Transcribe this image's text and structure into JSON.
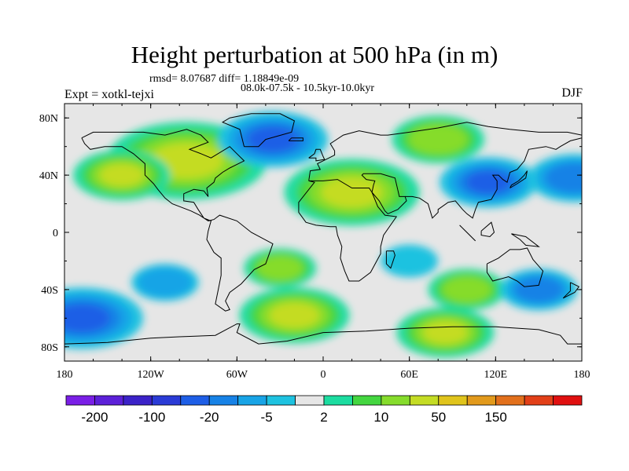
{
  "title": "Height perturbation at 500 hPa (in m)",
  "subtitle_stats": "rmsd= 8.07687 diff= 1.18849e-09",
  "subtitle_period": "08.0k-07.5k - 10.5kyr-10.0kyr",
  "left_label": "Expt = xotkl-tejxi",
  "right_label": "DJF",
  "chart_data": {
    "type": "heatmap",
    "projection": "cylindrical-equidistant",
    "lon_range": [
      -180,
      180
    ],
    "lat_range": [
      -90,
      90
    ],
    "x_ticks": [
      {
        "value": -180,
        "label": "180"
      },
      {
        "value": -120,
        "label": "120W"
      },
      {
        "value": -60,
        "label": "60W"
      },
      {
        "value": 0,
        "label": "0"
      },
      {
        "value": 60,
        "label": "60E"
      },
      {
        "value": 120,
        "label": "120E"
      },
      {
        "value": 180,
        "label": "180"
      }
    ],
    "y_ticks": [
      {
        "value": 80,
        "label": "80N"
      },
      {
        "value": 40,
        "label": "40N"
      },
      {
        "value": 0,
        "label": "0"
      },
      {
        "value": -40,
        "label": "40S"
      },
      {
        "value": -80,
        "label": "80S"
      }
    ],
    "colorbar": {
      "colors": [
        "#7a1fe6",
        "#5c20d8",
        "#3b22c8",
        "#2a3bd6",
        "#1e5ee6",
        "#1782e6",
        "#18a4e6",
        "#1ec2e0",
        "#e6e6e6",
        "#1cdca0",
        "#44d640",
        "#86dc2c",
        "#c4dc24",
        "#e0c41c",
        "#e29a1c",
        "#e2701c",
        "#e24018",
        "#e01010"
      ],
      "tick_labels": [
        "-200",
        "-100",
        "-20",
        "-5",
        "2",
        "10",
        "50",
        "150"
      ],
      "tick_boundaries": [
        1,
        3,
        5,
        7,
        9,
        11,
        13,
        15
      ]
    },
    "anomalies": [
      {
        "lon": -95,
        "lat": 50,
        "value": 45
      },
      {
        "lon": -140,
        "lat": 40,
        "value": 20
      },
      {
        "lon": -35,
        "lat": 65,
        "value": -25
      },
      {
        "lon": 20,
        "lat": 28,
        "value": 35
      },
      {
        "lon": 80,
        "lat": 65,
        "value": 18
      },
      {
        "lon": 115,
        "lat": 35,
        "value": -20
      },
      {
        "lon": 175,
        "lat": 38,
        "value": -18
      },
      {
        "lon": -168,
        "lat": -60,
        "value": -30
      },
      {
        "lon": -20,
        "lat": -58,
        "value": 25
      },
      {
        "lon": 85,
        "lat": -70,
        "value": 20
      },
      {
        "lon": 100,
        "lat": -40,
        "value": 12
      },
      {
        "lon": 150,
        "lat": -40,
        "value": -12
      },
      {
        "lon": -110,
        "lat": -35,
        "value": -8
      },
      {
        "lon": -30,
        "lat": -25,
        "value": 10
      },
      {
        "lon": 60,
        "lat": -20,
        "value": -4
      }
    ]
  }
}
